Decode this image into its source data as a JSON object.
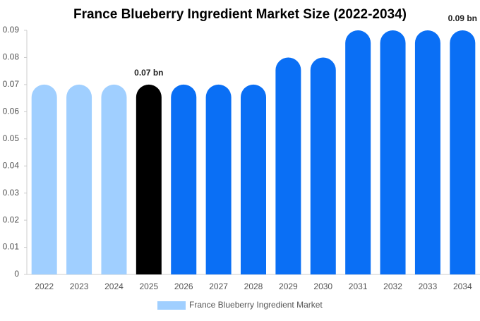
{
  "chart_data": {
    "type": "bar",
    "title": "France Blueberry Ingredient Market Size (2022-2034)",
    "categories": [
      "2022",
      "2023",
      "2024",
      "2025",
      "2026",
      "2027",
      "2028",
      "2029",
      "2030",
      "2031",
      "2032",
      "2033",
      "2034"
    ],
    "series": [
      {
        "name": "France Blueberry Ingredient Market",
        "color": "#a0cfff",
        "values": [
          0.07,
          0.07,
          0.07,
          0.07,
          0.07,
          0.07,
          0.07,
          0.08,
          0.08,
          0.09,
          0.09,
          0.09,
          0.09
        ],
        "colors": [
          "#a0cfff",
          "#a0cfff",
          "#a0cfff",
          "#000000",
          "#0a6ff5",
          "#0a6ff5",
          "#0a6ff5",
          "#0a6ff5",
          "#0a6ff5",
          "#0a6ff5",
          "#0a6ff5",
          "#0a6ff5",
          "#0a6ff5"
        ],
        "value_labels": [
          null,
          null,
          null,
          "0.07 bn",
          null,
          null,
          null,
          null,
          null,
          null,
          null,
          null,
          "0.09 bn"
        ]
      }
    ],
    "ylim": [
      0,
      0.09
    ],
    "yticks": [
      0,
      0.01,
      0.02,
      0.03,
      0.04,
      0.05,
      0.06,
      0.07,
      0.08,
      0.09
    ],
    "grid": false
  }
}
